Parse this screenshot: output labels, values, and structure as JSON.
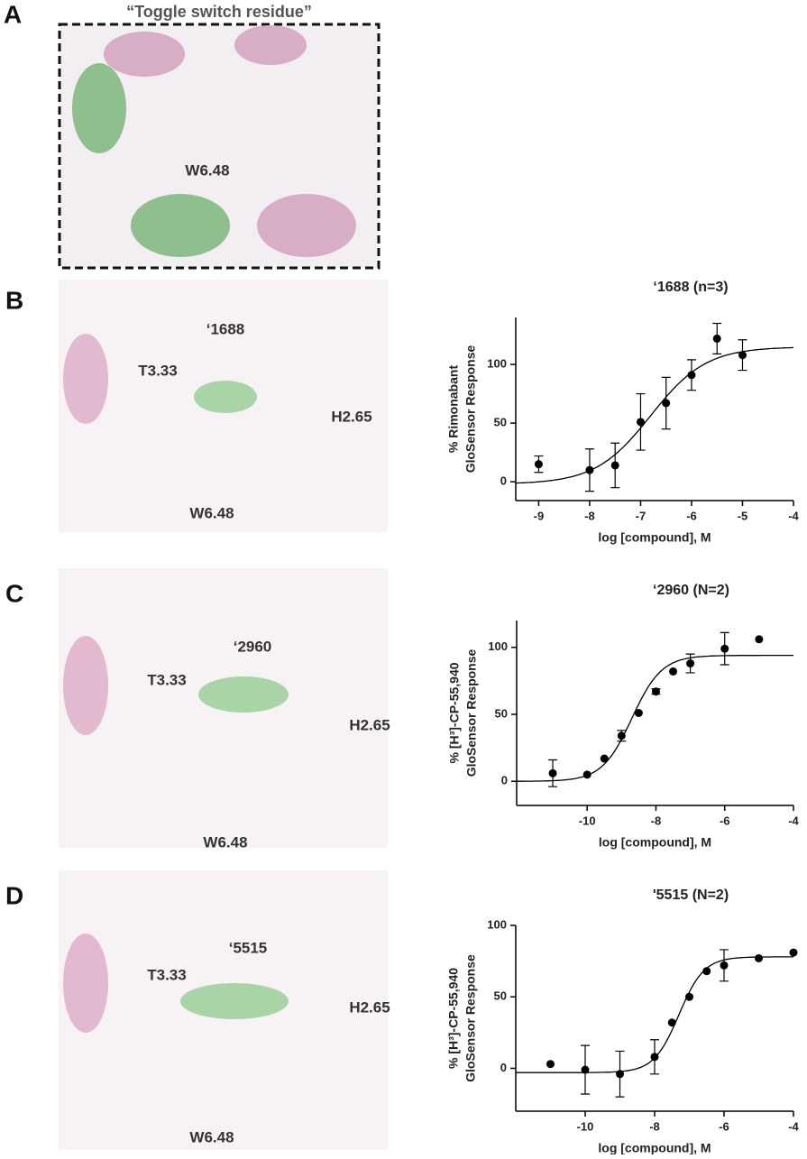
{
  "panels": [
    {
      "label": "A",
      "title": "“Toggle switch residue”",
      "annotations": [
        "W6.48"
      ]
    },
    {
      "label": "B",
      "annotations": [
        "‘1688",
        "T3.33",
        "H2.65",
        "W6.48"
      ]
    },
    {
      "label": "C",
      "annotations": [
        "‘2960",
        "T3.33",
        "H2.65",
        "W6.48"
      ]
    },
    {
      "label": "D",
      "annotations": [
        "‘5515",
        "T3.33",
        "H2.65",
        "W6.48"
      ]
    }
  ],
  "chart_data": [
    {
      "type": "scatter",
      "title": "‘1688 (n=3)",
      "y_label": [
        "% Rimonabant",
        "GloSensor Response"
      ],
      "x_label": "log [compound], M",
      "x": [
        -9,
        -8,
        -7.5,
        -7,
        -6.5,
        -6,
        -5.5,
        -5
      ],
      "values": [
        15,
        10,
        14,
        51,
        67,
        91,
        122,
        108
      ],
      "errors": [
        7,
        18,
        19,
        24,
        22,
        13,
        13,
        13
      ],
      "fit": {
        "bottom": -2,
        "top": 115,
        "log_ec50": -6.8,
        "hill": 0.8
      },
      "color": "#000000",
      "xlim": [
        -9.45,
        -4
      ],
      "xticks": [
        -9,
        -8,
        -7,
        -6,
        -5,
        -4
      ],
      "ylim": [
        -16,
        140
      ],
      "yticks": [
        0,
        50,
        100
      ]
    },
    {
      "type": "scatter",
      "title": "‘2960 (N=2)",
      "y_label": [
        "% [H³]-CP-55,940",
        "GloSensor Response"
      ],
      "x_label": "log [compound], M",
      "x": [
        -11,
        -10,
        -9.5,
        -9,
        -8.5,
        -8,
        -7.5,
        -7,
        -6,
        -5
      ],
      "values": [
        6,
        5,
        17,
        34,
        51,
        67,
        82,
        88,
        99,
        106
      ],
      "errors": [
        10,
        0,
        0,
        4,
        0,
        2,
        0,
        7,
        12,
        0
      ],
      "fit": {
        "bottom": 0,
        "top": 94,
        "log_ec50": -8.7,
        "hill": 1
      },
      "color": "#000000",
      "xlim": [
        -12.05,
        -4
      ],
      "xticks": [
        -10,
        -8,
        -6,
        -4
      ],
      "ylim": [
        -18,
        120
      ],
      "yticks": [
        0,
        50,
        100
      ]
    },
    {
      "type": "scatter",
      "title": "'5515 (N=2)",
      "y_label": [
        "% [H³]-CP-55,940",
        "GloSensor Response"
      ],
      "x_label": "log [compound], M",
      "x": [
        -11,
        -10,
        -9,
        -8,
        -7.5,
        -7,
        -6.5,
        -6,
        -5,
        -4
      ],
      "values": [
        3,
        -1,
        -4,
        8,
        32,
        50,
        68,
        72,
        77,
        81
      ],
      "errors": [
        0,
        17,
        16,
        12,
        0,
        0,
        0,
        11,
        0,
        0
      ],
      "fit": {
        "bottom": -3,
        "top": 78,
        "log_ec50": -7.3,
        "hill": 1.2
      },
      "color": "#000000",
      "xlim": [
        -12,
        -4
      ],
      "xticks": [
        -10,
        -8,
        -6,
        -4
      ],
      "ylim": [
        -30,
        100
      ],
      "yticks": [
        0,
        50,
        100
      ]
    }
  ]
}
